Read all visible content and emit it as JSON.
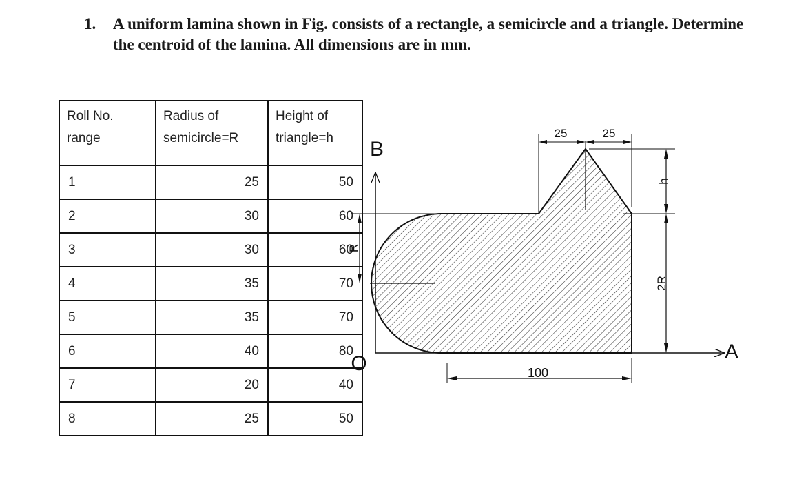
{
  "question": {
    "number": "1.",
    "text": "A uniform lamina shown in Fig. consists of a rectangle, a semicircle and a triangle. Determine the centroid of the lamina. All dimensions are in mm."
  },
  "table": {
    "headers": {
      "roll": "Roll No. range",
      "radius": "Radius of semicircle=R",
      "height": "Height of triangle=h"
    },
    "rows": [
      {
        "roll": "1",
        "radius": "25",
        "height": "50"
      },
      {
        "roll": "2",
        "radius": "30",
        "height": "60"
      },
      {
        "roll": "3",
        "radius": "30",
        "height": "60"
      },
      {
        "roll": "4",
        "radius": "35",
        "height": "70"
      },
      {
        "roll": "5",
        "radius": "35",
        "height": "70"
      },
      {
        "roll": "6",
        "radius": "40",
        "height": "80"
      },
      {
        "roll": "7",
        "radius": "20",
        "height": "40"
      },
      {
        "roll": "8",
        "radius": "25",
        "height": "50"
      }
    ]
  },
  "figure": {
    "axis_b": "B",
    "axis_a": "A",
    "origin": "O",
    "dim_r": "R",
    "dim_2r": "2R",
    "dim_h": "h",
    "dim_100": "100",
    "dim_25_left": "25",
    "dim_25_right": "25"
  }
}
